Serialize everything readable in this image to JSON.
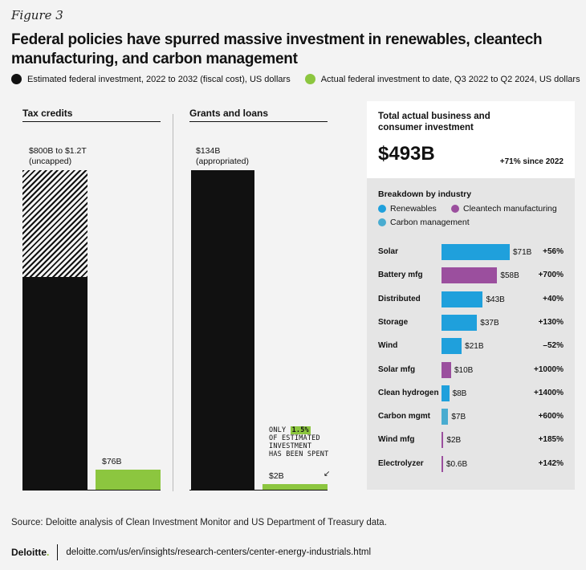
{
  "figure_label": "Figure 3",
  "title": "Federal policies have spurred massive investment in renewables, cleantech manufacturing, and carbon management",
  "legend": {
    "estimated": "Estimated federal investment, 2022 to 2032 (fiscal cost), US dollars",
    "actual": "Actual federal investment to date, Q3 2022 to Q2 2024, US dollars"
  },
  "colors": {
    "black": "#111111",
    "green": "#8cc63f",
    "renewables": "#1fa0dc",
    "cleantech": "#9b4f9e",
    "carbon": "#49acd0"
  },
  "left_panel": {
    "tax_credits": {
      "heading": "Tax credits",
      "estimated_label_line1": "$800B to $1.2T",
      "estimated_label_line2": "(uncapped)",
      "actual_label": "$76B"
    },
    "grants": {
      "heading": "Grants and loans",
      "estimated_label_line1": "$134B",
      "estimated_label_line2": "(appropriated)",
      "actual_label": "$2B",
      "note_line1_pre": "ONLY",
      "note_highlight": "1.5%",
      "note_line2": "OF ESTIMATED",
      "note_line3": "INVESTMENT",
      "note_line4": "HAS BEEN SPENT",
      "note_arrow": "↙"
    }
  },
  "right_panel": {
    "title_line1": "Total actual business and",
    "title_line2": "consumer investment",
    "total": "$493B",
    "growth": "+71% since 2022",
    "breakdown_title": "Breakdown by industry",
    "industries": [
      "Renewables",
      "Cleantech manufacturing",
      "Carbon management"
    ]
  },
  "chart_data": [
    {
      "type": "bar",
      "title": "Tax credits",
      "categories": [
        "Estimated federal investment",
        "Actual federal investment to date"
      ],
      "values_billion": [
        1200,
        76
      ],
      "estimated_range_billion": [
        800,
        1200
      ],
      "value_labels": [
        "$800B to $1.2T (uncapped)",
        "$76B"
      ]
    },
    {
      "type": "bar",
      "title": "Grants and loans",
      "categories": [
        "Estimated federal investment",
        "Actual federal investment to date"
      ],
      "values_billion": [
        134,
        2
      ],
      "value_labels": [
        "$134B (appropriated)",
        "$2B"
      ]
    },
    {
      "type": "bar",
      "orientation": "horizontal",
      "title": "Breakdown by industry",
      "rows": [
        {
          "name": "Solar",
          "value": 71,
          "label": "$71B",
          "change": "+56%",
          "industry": "renewables"
        },
        {
          "name": "Battery mfg",
          "value": 58,
          "label": "$58B",
          "change": "+700%",
          "industry": "cleantech"
        },
        {
          "name": "Distributed",
          "value": 43,
          "label": "$43B",
          "change": "+40%",
          "industry": "renewables"
        },
        {
          "name": "Storage",
          "value": 37,
          "label": "$37B",
          "change": "+130%",
          "industry": "renewables"
        },
        {
          "name": "Wind",
          "value": 21,
          "label": "$21B",
          "change": "–52%",
          "industry": "renewables"
        },
        {
          "name": "Solar mfg",
          "value": 10,
          "label": "$10B",
          "change": "+1000%",
          "industry": "cleantech"
        },
        {
          "name": "Clean hydrogen",
          "value": 8,
          "label": "$8B",
          "change": "+1400%",
          "industry": "renewables"
        },
        {
          "name": "Carbon mgmt",
          "value": 7,
          "label": "$7B",
          "change": "+600%",
          "industry": "carbon"
        },
        {
          "name": "Wind mfg",
          "value": 2,
          "label": "$2B",
          "change": "+185%",
          "industry": "cleantech"
        },
        {
          "name": "Electrolyzer",
          "value": 0.6,
          "label": "$0.6B",
          "change": "+142%",
          "industry": "cleantech"
        }
      ]
    }
  ],
  "source": "Source: Deloitte analysis of Clean Investment Monitor and US Department of Treasury data.",
  "footer": {
    "brand": "Deloitte",
    "brand_dot": ".",
    "url": "deloitte.com/us/en/insights/research-centers/center-energy-industrials.html"
  }
}
